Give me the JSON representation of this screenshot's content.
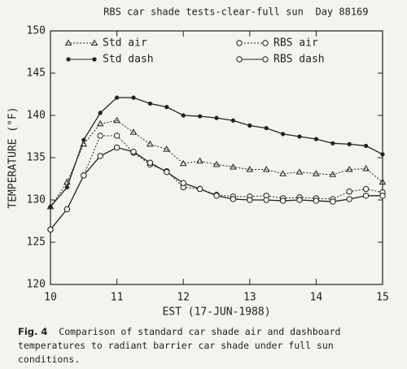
{
  "chart_data": {
    "type": "line",
    "title": "RBS car shade tests-clear-full sun",
    "subtitle": "Day 88169",
    "x_label": "EST (17-JUN-1988)",
    "y_label": "TEMPERATURE (°F)",
    "x": [
      10,
      10.25,
      10.5,
      10.75,
      11,
      11.25,
      11.5,
      11.75,
      12,
      12.25,
      12.5,
      12.75,
      13,
      13.25,
      13.5,
      13.75,
      14,
      14.25,
      14.5,
      14.75,
      15
    ],
    "xlim": [
      10,
      15
    ],
    "xticks": [
      10,
      11,
      12,
      13,
      14,
      15
    ],
    "ylim": [
      120,
      150
    ],
    "yticks": [
      120,
      125,
      130,
      135,
      140,
      145,
      150
    ],
    "series": [
      {
        "name": "Std air",
        "color": "#222222",
        "marker": "triangle",
        "dashed": true,
        "values": [
          129.2,
          132.1,
          136.6,
          139.0,
          139.4,
          138.0,
          136.6,
          136.0,
          134.3,
          134.6,
          134.2,
          133.9,
          133.6,
          133.6,
          133.1,
          133.3,
          133.1,
          133.0,
          133.6,
          133.7,
          132.1
        ]
      },
      {
        "name": "Std dash",
        "color": "#222222",
        "marker": "dot",
        "dashed": false,
        "values": [
          129.2,
          131.5,
          137.1,
          140.3,
          142.1,
          142.1,
          141.4,
          141.0,
          140.0,
          139.9,
          139.7,
          139.4,
          138.8,
          138.5,
          137.8,
          137.5,
          137.2,
          136.7,
          136.6,
          136.4,
          135.4
        ]
      },
      {
        "name": "RBS air",
        "color": "#222222",
        "marker": "circle",
        "dashed": true,
        "values": [
          126.5,
          128.9,
          132.9,
          137.6,
          137.6,
          135.6,
          134.2,
          133.4,
          131.5,
          131.3,
          130.6,
          130.4,
          130.4,
          130.5,
          130.2,
          130.3,
          130.2,
          130.1,
          131.0,
          131.3,
          130.9
        ]
      },
      {
        "name": "RBS dash",
        "color": "#222222",
        "marker": "circle",
        "dashed": false,
        "values": [
          126.5,
          128.9,
          132.9,
          135.2,
          136.2,
          135.7,
          134.4,
          133.3,
          132.0,
          131.3,
          130.5,
          130.1,
          130.0,
          130.0,
          129.9,
          130.0,
          129.9,
          129.8,
          130.1,
          130.5,
          130.5
        ]
      }
    ]
  },
  "caption_label": "Fig. 4",
  "caption": "Comparison of standard car shade air and dashboard temperatures to radiant barrier car shade under full sun conditions."
}
